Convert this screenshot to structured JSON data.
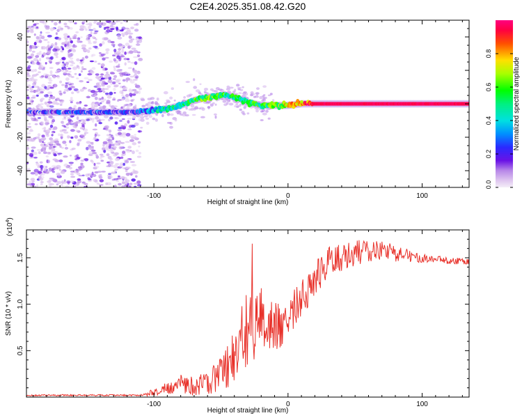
{
  "title": "C2E4.2025.351.08.42.G20",
  "chart_data": [
    {
      "type": "heatmap",
      "xlabel": "Height of straight line (km)",
      "ylabel": "Frequency (Hz)",
      "xlim": [
        -195,
        135
      ],
      "ylim": [
        -50,
        50
      ],
      "xticks": [
        -100,
        0,
        100
      ],
      "xtick_labels": [
        "-100",
        "0",
        "100"
      ],
      "yticks": [
        -40,
        -20,
        0,
        20,
        40
      ],
      "ytick_labels": [
        "-40",
        "-20",
        "0",
        "20",
        "40"
      ],
      "colorbar": {
        "label": "Normalized spectral amplitude",
        "range": [
          0,
          1
        ],
        "ticks": [
          0,
          0.2,
          0.4,
          0.6,
          0.8
        ],
        "tick_labels": [
          "0.0",
          "0.2",
          "0.4",
          "0.6",
          "0.8"
        ]
      },
      "ridge": {
        "x": [
          -195,
          -150,
          -115,
          -100,
          -90,
          -80,
          -70,
          -60,
          -50,
          -45,
          -40,
          -30,
          -20,
          -10,
          0,
          10,
          20,
          60,
          100,
          135
        ],
        "frequency": [
          -5,
          -5,
          -5,
          -4,
          -3,
          -1,
          2,
          4,
          5,
          5,
          4,
          1,
          -1,
          -1,
          -1,
          0,
          0,
          0,
          0,
          0
        ],
        "amplitude": [
          0.15,
          0.18,
          0.2,
          0.35,
          0.45,
          0.5,
          0.55,
          0.6,
          0.55,
          0.5,
          0.5,
          0.55,
          0.5,
          0.6,
          0.7,
          0.8,
          0.95,
          0.95,
          0.95,
          0.95
        ]
      }
    },
    {
      "type": "line",
      "xlabel": "Height of straight line (km)",
      "ylabel": "SNR (10 * v/v)",
      "y_multiplier_label": "(x10",
      "y_multiplier_exp": "4",
      "y_multiplier_close": ")",
      "xlim": [
        -195,
        135
      ],
      "ylim": [
        0,
        1.8
      ],
      "xticks": [
        -100,
        0,
        100
      ],
      "xtick_labels": [
        "-100",
        "0",
        "100"
      ],
      "yticks": [
        0.5,
        1.0,
        1.5
      ],
      "ytick_labels": [
        "0.5",
        "1.0",
        "1.5"
      ],
      "color": "#e8312a",
      "envelope": {
        "x": [
          -195,
          -110,
          -100,
          -90,
          -80,
          -70,
          -60,
          -50,
          -40,
          -30,
          -20,
          -10,
          0,
          10,
          20,
          30,
          40,
          50,
          60,
          70,
          80,
          90,
          100,
          110,
          120,
          135
        ],
        "y": [
          0.02,
          0.02,
          0.05,
          0.1,
          0.15,
          0.12,
          0.15,
          0.25,
          0.45,
          0.75,
          0.85,
          0.75,
          0.85,
          1.05,
          1.3,
          1.45,
          1.5,
          1.55,
          1.58,
          1.58,
          1.55,
          1.52,
          1.5,
          1.48,
          1.47,
          1.46
        ]
      },
      "fluctuation": {
        "x": [
          -195,
          -110,
          -100,
          -80,
          -60,
          -50,
          -40,
          -30,
          -20,
          0,
          20,
          40,
          60,
          80,
          100,
          135
        ],
        "y": [
          0.008,
          0.008,
          0.04,
          0.1,
          0.12,
          0.2,
          0.3,
          0.45,
          0.35,
          0.22,
          0.2,
          0.15,
          0.12,
          0.09,
          0.05,
          0.03
        ]
      }
    }
  ]
}
